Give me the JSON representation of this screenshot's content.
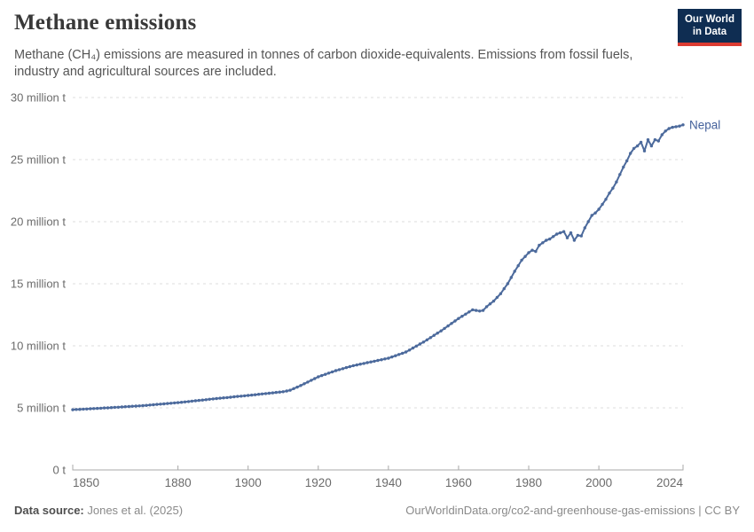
{
  "header": {
    "title": "Methane emissions",
    "subtitle": "Methane (CH₄) emissions are measured in tonnes of carbon dioxide-equivalents. Emissions from fossil fuels, industry and agricultural sources are included.",
    "logo": {
      "line1": "Our World",
      "line2": "in Data"
    }
  },
  "footer": {
    "source_label": "Data source:",
    "source_value": " Jones et al. (2025)",
    "attribution": "OurWorldinData.org/co2-and-greenhouse-gas-emissions | CC BY"
  },
  "colors": {
    "line": "#4C6A9C",
    "entity_label": "#44619b",
    "grid": "#dcdcdc",
    "axis": "#a8a8a8",
    "tick_text": "#6b6b6b",
    "logo_bg": "#0f2d52",
    "logo_red": "#dc3b31"
  },
  "chart_data": {
    "type": "line",
    "title": "Methane emissions",
    "unit": "million tonnes of CO2-equivalents",
    "xlim": [
      1850,
      2024
    ],
    "ylim": [
      0,
      30
    ],
    "grid": "horizontal dashed",
    "legend_position": "end-of-line label",
    "yticks": [
      {
        "value": 0,
        "label": "0 t"
      },
      {
        "value": 5,
        "label": "5 million t"
      },
      {
        "value": 10,
        "label": "10 million t"
      },
      {
        "value": 15,
        "label": "15 million t"
      },
      {
        "value": 20,
        "label": "20 million t"
      },
      {
        "value": 25,
        "label": "25 million t"
      },
      {
        "value": 30,
        "label": "30 million t"
      }
    ],
    "xticks": [
      1850,
      1880,
      1900,
      1920,
      1940,
      1960,
      1980,
      2000,
      2024
    ],
    "year_start": 1850,
    "year_end": 2024,
    "series": [
      {
        "name": "Nepal",
        "color": "#4C6A9C",
        "values": [
          4.85,
          4.87,
          4.88,
          4.9,
          4.91,
          4.93,
          4.94,
          4.96,
          4.97,
          4.99,
          5.0,
          5.02,
          5.04,
          5.05,
          5.07,
          5.09,
          5.11,
          5.13,
          5.14,
          5.16,
          5.18,
          5.2,
          5.23,
          5.25,
          5.28,
          5.3,
          5.32,
          5.35,
          5.37,
          5.4,
          5.42,
          5.45,
          5.48,
          5.51,
          5.54,
          5.57,
          5.6,
          5.63,
          5.66,
          5.69,
          5.72,
          5.75,
          5.78,
          5.81,
          5.83,
          5.86,
          5.89,
          5.92,
          5.94,
          5.97,
          6.0,
          6.03,
          6.06,
          6.09,
          6.12,
          6.15,
          6.18,
          6.21,
          6.24,
          6.27,
          6.3,
          6.36,
          6.42,
          6.55,
          6.67,
          6.8,
          6.94,
          7.08,
          7.22,
          7.36,
          7.5,
          7.6,
          7.7,
          7.8,
          7.9,
          8.0,
          8.08,
          8.16,
          8.24,
          8.32,
          8.4,
          8.46,
          8.52,
          8.58,
          8.64,
          8.7,
          8.76,
          8.82,
          8.88,
          8.94,
          9.0,
          9.1,
          9.2,
          9.3,
          9.4,
          9.5,
          9.66,
          9.82,
          9.98,
          10.14,
          10.3,
          10.48,
          10.66,
          10.84,
          11.02,
          11.2,
          11.4,
          11.6,
          11.8,
          12.0,
          12.2,
          12.38,
          12.55,
          12.73,
          12.9,
          12.85,
          12.8,
          12.85,
          13.15,
          13.38,
          13.6,
          13.9,
          14.2,
          14.6,
          15.0,
          15.5,
          16.0,
          16.45,
          16.9,
          17.2,
          17.5,
          17.7,
          17.6,
          18.1,
          18.3,
          18.5,
          18.6,
          18.8,
          19.0,
          19.1,
          19.2,
          18.7,
          19.1,
          18.5,
          18.9,
          18.85,
          19.5,
          20.0,
          20.5,
          20.7,
          21.0,
          21.4,
          21.8,
          22.3,
          22.7,
          23.2,
          23.8,
          24.4,
          24.9,
          25.5,
          25.9,
          26.1,
          26.4,
          25.7,
          26.6,
          26.1,
          26.6,
          26.5,
          27.0,
          27.3,
          27.5,
          27.6,
          27.65,
          27.7,
          27.8
        ]
      }
    ]
  }
}
